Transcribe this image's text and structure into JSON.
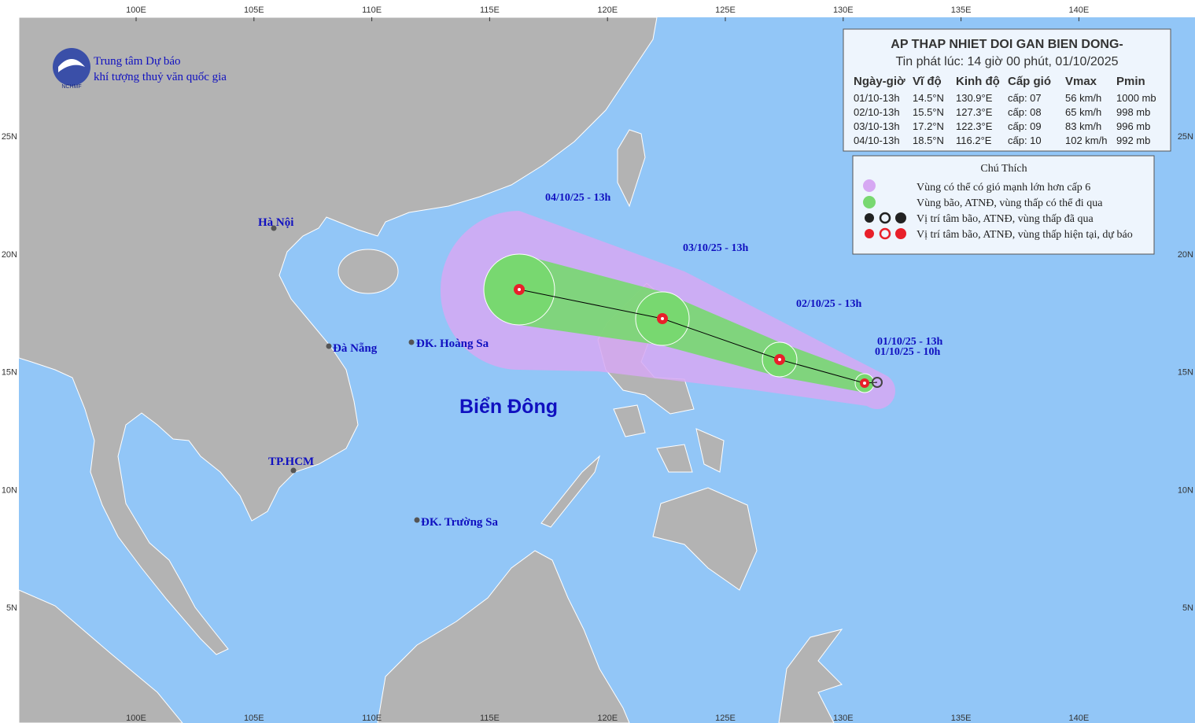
{
  "map": {
    "lon_labels": [
      "100E",
      "105E",
      "110E",
      "115E",
      "120E",
      "125E",
      "130E",
      "135E",
      "140E"
    ],
    "lat_labels": [
      "25N",
      "20N",
      "15N",
      "10N",
      "5N"
    ],
    "org": {
      "logo": "NCHMF",
      "line1": "Trung tâm Dự báo",
      "line2": "khí tượng thuỷ văn quốc gia"
    },
    "info": {
      "title": "AP THAP NHIET DOI GAN BIEN DONG-",
      "issued": "Tin phát lúc: 14 giờ 00 phút, 01/10/2025",
      "headers": [
        "Ngày-giờ",
        "Vĩ độ",
        "Kinh độ",
        "Cấp gió",
        "Vmax",
        "Pmin"
      ],
      "rows": [
        [
          "01/10-13h",
          "14.5°N",
          "130.9°E",
          "cấp: 07",
          "56 km/h",
          "1000 mb"
        ],
        [
          "02/10-13h",
          "15.5°N",
          "127.3°E",
          "cấp: 08",
          "65 km/h",
          "998 mb"
        ],
        [
          "03/10-13h",
          "17.2°N",
          "122.3°E",
          "cấp: 09",
          "83 km/h",
          "996 mb"
        ],
        [
          "04/10-13h",
          "18.5°N",
          "116.2°E",
          "cấp: 10",
          "102 km/h",
          "992 mb"
        ]
      ]
    },
    "legend": {
      "title": "Chú Thích",
      "items": [
        "Vùng có thể có gió mạnh lớn hơn cấp 6",
        "Vùng bão, ATNĐ, vùng thấp có thể đi qua",
        "Vị trí tâm bão, ATNĐ, vùng thấp đã qua",
        "Vị trí tâm bão, ATNĐ, vùng thấp hiện tại, dự báo"
      ]
    },
    "places": [
      "Hà Nội",
      "Đà Nẵng",
      "ĐK. Hoàng Sa",
      "TP.HCM",
      "ĐK. Trường Sa"
    ],
    "sea": "Biển Đông",
    "track_labels": [
      "04/10/25 - 13h",
      "03/10/25 - 13h",
      "02/10/25 - 13h",
      "01/10/25 - 13h",
      "01/10/25 - 10h"
    ]
  }
}
